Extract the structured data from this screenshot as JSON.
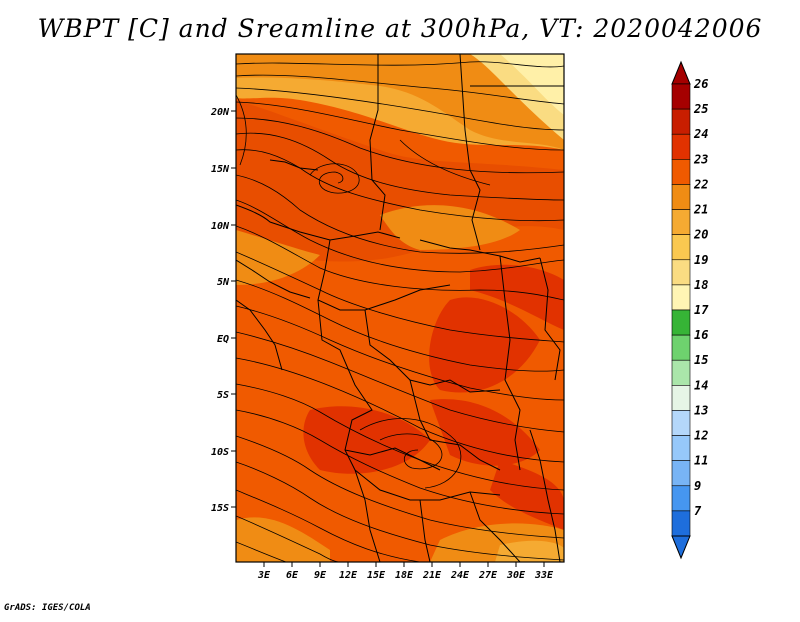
{
  "title": "WBPT [C] and Sreamline at 300hPa, VT: 2020042006",
  "footer": "GrADS: IGES/COLA",
  "map": {
    "lon_range": [
      0,
      35
    ],
    "lat_range": [
      -20,
      25
    ],
    "lon_ticks": [
      "3E",
      "6E",
      "9E",
      "12E",
      "15E",
      "18E",
      "21E",
      "24E",
      "27E",
      "30E",
      "33E"
    ],
    "lat_ticks": [
      "20N",
      "15N",
      "10N",
      "5N",
      "EQ",
      "5S",
      "10S",
      "15S"
    ],
    "field": "Wet-bulb potential temperature with streamlines",
    "level": "300hPa"
  },
  "colorbar": {
    "labels": [
      "26",
      "25",
      "24",
      "23",
      "22",
      "21",
      "20",
      "19",
      "18",
      "17",
      "16",
      "15",
      "14",
      "13",
      "12",
      "11",
      "9",
      "7"
    ],
    "colors": [
      "#a50000",
      "#c81e00",
      "#e13200",
      "#f05a00",
      "#f08c14",
      "#f5aa32",
      "#fac850",
      "#fadc82",
      "#fff5b4",
      "#36b436",
      "#6ed26e",
      "#aae6aa",
      "#e6f5e6",
      "#b4d7fa",
      "#96c8fa",
      "#78b4f5",
      "#4696f0",
      "#1e6edc"
    ]
  }
}
